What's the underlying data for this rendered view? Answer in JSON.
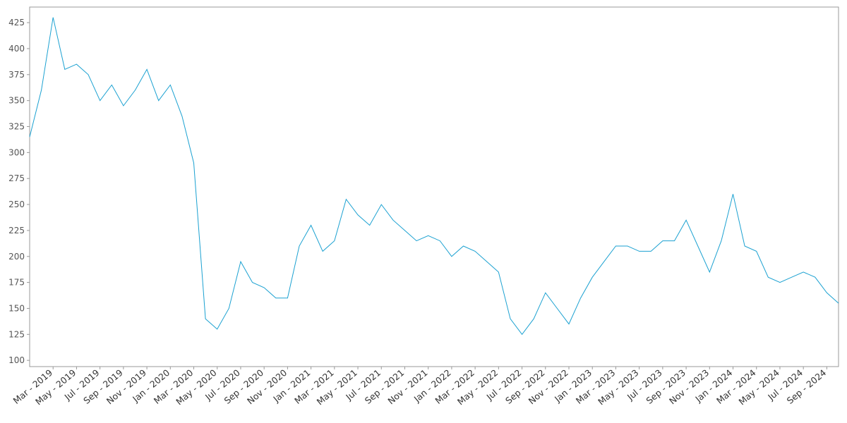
{
  "chart_data": {
    "type": "line",
    "x": [
      "2019-01",
      "2019-02",
      "2019-03",
      "2019-04",
      "2019-05",
      "2019-06",
      "2019-07",
      "2019-08",
      "2019-09",
      "2019-10",
      "2019-11",
      "2019-12",
      "2020-01",
      "2020-02",
      "2020-03",
      "2020-04",
      "2020-05",
      "2020-06",
      "2020-07",
      "2020-08",
      "2020-09",
      "2020-10",
      "2020-11",
      "2020-12",
      "2021-01",
      "2021-02",
      "2021-03",
      "2021-04",
      "2021-05",
      "2021-06",
      "2021-07",
      "2021-08",
      "2021-09",
      "2021-10",
      "2021-11",
      "2021-12",
      "2022-01",
      "2022-02",
      "2022-03",
      "2022-04",
      "2022-05",
      "2022-06",
      "2022-07",
      "2022-08",
      "2022-09",
      "2022-10",
      "2022-11",
      "2022-12",
      "2023-01",
      "2023-02",
      "2023-03",
      "2023-04",
      "2023-05",
      "2023-06",
      "2023-07",
      "2023-08",
      "2023-09",
      "2023-10",
      "2023-11",
      "2023-12",
      "2024-01",
      "2024-02",
      "2024-03",
      "2024-04",
      "2024-05",
      "2024-06",
      "2024-07",
      "2024-08",
      "2024-09",
      "2024-10"
    ],
    "values": [
      315,
      360,
      430,
      380,
      385,
      375,
      350,
      365,
      345,
      360,
      380,
      350,
      365,
      335,
      290,
      140,
      130,
      150,
      195,
      175,
      170,
      160,
      160,
      210,
      230,
      205,
      215,
      255,
      240,
      230,
      250,
      235,
      225,
      215,
      220,
      215,
      200,
      210,
      205,
      195,
      185,
      140,
      125,
      140,
      165,
      150,
      135,
      160,
      180,
      195,
      210,
      210,
      205,
      205,
      215,
      215,
      235,
      210,
      185,
      215,
      260,
      210,
      205,
      180,
      175,
      180,
      185,
      180,
      165,
      155
    ],
    "color": "#1ba1d1",
    "xlim": [
      "2019-01",
      "2024-10"
    ],
    "xticks": [
      {
        "value": "2019-03",
        "label": "Mar - 2019"
      },
      {
        "value": "2019-05",
        "label": "May - 2019"
      },
      {
        "value": "2019-07",
        "label": "Jul - 2019"
      },
      {
        "value": "2019-09",
        "label": "Sep - 2019"
      },
      {
        "value": "2019-11",
        "label": "Nov - 2019"
      },
      {
        "value": "2020-01",
        "label": "Jan - 2020"
      },
      {
        "value": "2020-03",
        "label": "Mar - 2020"
      },
      {
        "value": "2020-05",
        "label": "May - 2020"
      },
      {
        "value": "2020-07",
        "label": "Jul - 2020"
      },
      {
        "value": "2020-09",
        "label": "Sep - 2020"
      },
      {
        "value": "2020-11",
        "label": "Nov - 2020"
      },
      {
        "value": "2021-01",
        "label": "Jan - 2021"
      },
      {
        "value": "2021-03",
        "label": "Mar - 2021"
      },
      {
        "value": "2021-05",
        "label": "May - 2021"
      },
      {
        "value": "2021-07",
        "label": "Jul - 2021"
      },
      {
        "value": "2021-09",
        "label": "Sep - 2021"
      },
      {
        "value": "2021-11",
        "label": "Nov - 2021"
      },
      {
        "value": "2022-01",
        "label": "Jan - 2022"
      },
      {
        "value": "2022-03",
        "label": "Mar - 2022"
      },
      {
        "value": "2022-05",
        "label": "May - 2022"
      },
      {
        "value": "2022-07",
        "label": "Jul - 2022"
      },
      {
        "value": "2022-09",
        "label": "Sep - 2022"
      },
      {
        "value": "2022-11",
        "label": "Nov - 2022"
      },
      {
        "value": "2023-01",
        "label": "Jan - 2023"
      },
      {
        "value": "2023-03",
        "label": "Mar - 2023"
      },
      {
        "value": "2023-05",
        "label": "May - 2023"
      },
      {
        "value": "2023-07",
        "label": "Jul - 2023"
      },
      {
        "value": "2023-09",
        "label": "Sep - 2023"
      },
      {
        "value": "2023-11",
        "label": "Nov - 2023"
      },
      {
        "value": "2024-01",
        "label": "Jan - 2024"
      },
      {
        "value": "2024-03",
        "label": "Mar - 2024"
      },
      {
        "value": "2024-05",
        "label": "May - 2024"
      },
      {
        "value": "2024-07",
        "label": "Jul - 2024"
      },
      {
        "value": "2024-09",
        "label": "Sep - 2024"
      }
    ],
    "ylim": [
      94,
      440
    ],
    "yticks": [
      100,
      125,
      150,
      175,
      200,
      225,
      250,
      275,
      300,
      325,
      350,
      375,
      400,
      425
    ],
    "grid": false
  }
}
